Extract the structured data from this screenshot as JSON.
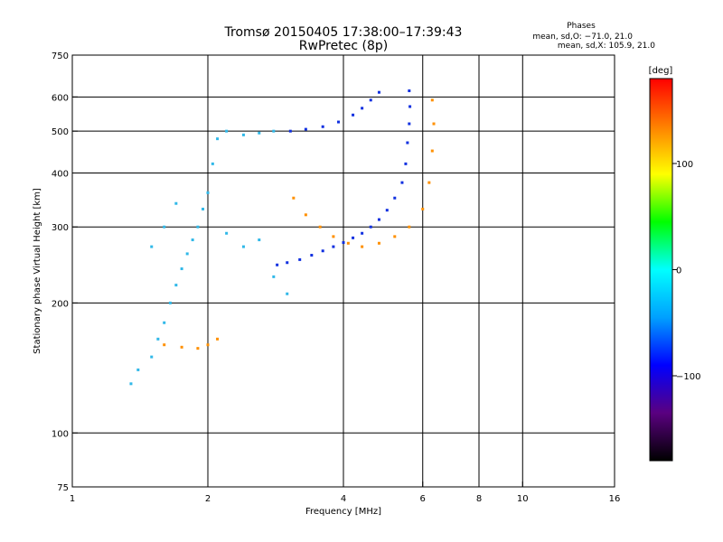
{
  "chart_data": {
    "type": "scatter",
    "title": "Tromsø 20150405 17:38:00–17:39:43",
    "subtitle": "RwPretec (8p)",
    "phases": {
      "heading": "Phases",
      "line_o": "mean, sd,O: −71.0, 21.0",
      "line_x": "mean, sd,X: 105.9, 21.0"
    },
    "xlabel": "Frequency [MHz]",
    "ylabel": "Stationary phase Virtual Height [km]",
    "x_scale": "log",
    "y_scale": "log",
    "xlim": [
      1,
      16
    ],
    "ylim": [
      75,
      750
    ],
    "x_ticks": [
      {
        "value": 1,
        "label": "1"
      },
      {
        "value": 2,
        "label": "2"
      },
      {
        "value": 4,
        "label": "4"
      },
      {
        "value": 6,
        "label": "6"
      },
      {
        "value": 8,
        "label": "8"
      },
      {
        "value": 10,
        "label": "10"
      },
      {
        "value": 16,
        "label": "16"
      }
    ],
    "x_grid": [
      2,
      4,
      6,
      8,
      10
    ],
    "y_ticks": [
      {
        "value": 75,
        "label": "75"
      },
      {
        "value": 100,
        "label": "100"
      },
      {
        "value": 200,
        "label": "200"
      },
      {
        "value": 300,
        "label": "300"
      },
      {
        "value": 400,
        "label": "400"
      },
      {
        "value": 500,
        "label": "500"
      },
      {
        "value": 600,
        "label": "600"
      },
      {
        "value": 750,
        "label": "750"
      }
    ],
    "y_grid": [
      100,
      200,
      300,
      400,
      500,
      600
    ],
    "grid": true,
    "colorbar": {
      "label": "[deg]",
      "range": [
        -180,
        180
      ],
      "ticks": [
        {
          "value": 100,
          "label": "100"
        },
        {
          "value": 0,
          "label": "0"
        },
        {
          "value": -100,
          "label": "−100"
        }
      ],
      "colors": [
        "#000000",
        "#5a0080",
        "#0000ff",
        "#00a0ff",
        "#00ffff",
        "#00ff00",
        "#ffff00",
        "#ff8000",
        "#ff0000"
      ]
    },
    "series": [
      {
        "trace": "o_mode",
        "color": "#1030e0",
        "points": [
          [
            2.85,
            245
          ],
          [
            3.0,
            248
          ],
          [
            3.2,
            252
          ],
          [
            3.4,
            258
          ],
          [
            3.6,
            264
          ],
          [
            3.8,
            270
          ],
          [
            4.0,
            276
          ],
          [
            4.2,
            283
          ],
          [
            4.4,
            290
          ],
          [
            4.6,
            300
          ],
          [
            4.8,
            312
          ],
          [
            5.0,
            328
          ],
          [
            5.2,
            350
          ],
          [
            5.4,
            380
          ],
          [
            5.5,
            420
          ],
          [
            5.55,
            470
          ],
          [
            5.6,
            520
          ],
          [
            5.62,
            570
          ],
          [
            5.6,
            620
          ],
          [
            3.05,
            500
          ],
          [
            3.3,
            505
          ],
          [
            3.6,
            512
          ],
          [
            3.9,
            525
          ],
          [
            4.2,
            545
          ],
          [
            4.4,
            565
          ],
          [
            4.6,
            590
          ],
          [
            4.8,
            615
          ]
        ]
      },
      {
        "trace": "x_mode",
        "color": "#ff9000",
        "points": [
          [
            3.1,
            350
          ],
          [
            3.3,
            320
          ],
          [
            3.55,
            300
          ],
          [
            3.8,
            285
          ],
          [
            4.1,
            275
          ],
          [
            4.4,
            270
          ],
          [
            4.8,
            275
          ],
          [
            5.2,
            285
          ],
          [
            5.6,
            300
          ],
          [
            6.0,
            330
          ],
          [
            6.2,
            380
          ],
          [
            6.3,
            450
          ],
          [
            6.35,
            520
          ],
          [
            6.3,
            590
          ],
          [
            1.6,
            160
          ],
          [
            1.75,
            158
          ],
          [
            1.9,
            157
          ],
          [
            2.0,
            160
          ],
          [
            2.1,
            165
          ]
        ]
      },
      {
        "trace": "low_layer",
        "color": "#30b8e8",
        "points": [
          [
            1.35,
            130
          ],
          [
            1.4,
            140
          ],
          [
            1.5,
            150
          ],
          [
            1.55,
            165
          ],
          [
            1.6,
            180
          ],
          [
            1.65,
            200
          ],
          [
            1.7,
            220
          ],
          [
            1.75,
            240
          ],
          [
            1.8,
            260
          ],
          [
            1.85,
            280
          ],
          [
            1.9,
            300
          ],
          [
            1.95,
            330
          ],
          [
            2.0,
            360
          ],
          [
            2.05,
            420
          ],
          [
            2.1,
            480
          ],
          [
            2.2,
            500
          ],
          [
            2.4,
            490
          ],
          [
            2.6,
            495
          ],
          [
            2.8,
            500
          ],
          [
            2.2,
            290
          ],
          [
            2.4,
            270
          ],
          [
            2.6,
            280
          ],
          [
            2.8,
            230
          ],
          [
            3.0,
            210
          ],
          [
            1.5,
            270
          ],
          [
            1.6,
            300
          ],
          [
            1.7,
            340
          ]
        ]
      }
    ]
  }
}
